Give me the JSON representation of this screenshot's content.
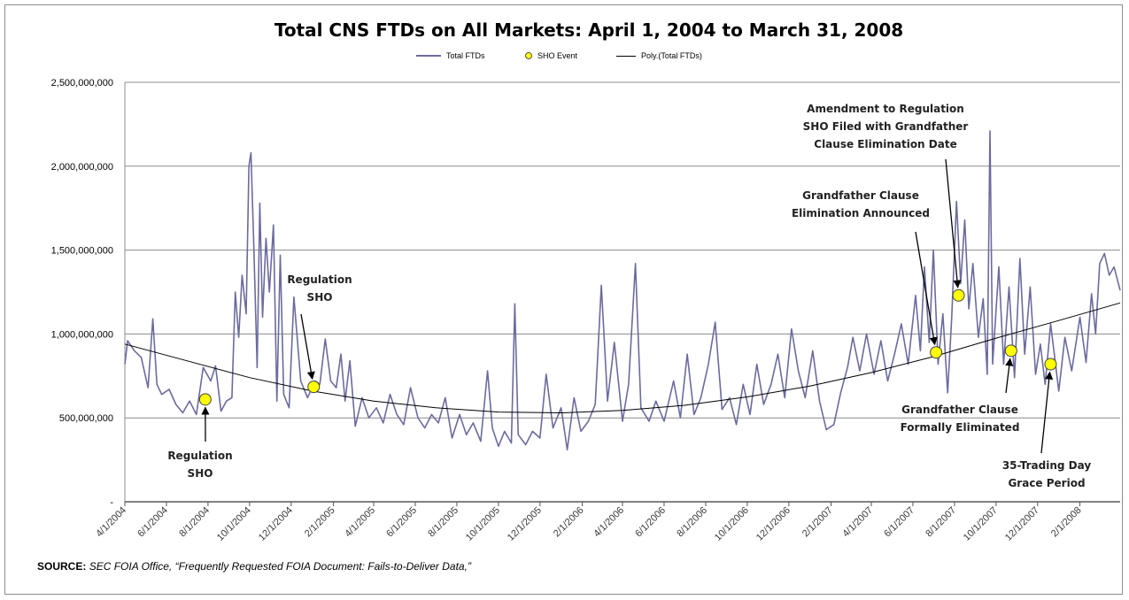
{
  "chart_data": {
    "type": "line",
    "title": "Total CNS FTDs on All Markets: April 1, 2004 to March 31, 2008",
    "legend": {
      "position": "top",
      "entries": [
        {
          "name": "Total FTDs",
          "kind": "line",
          "color": "#6b6b9e"
        },
        {
          "name": "SHO Event",
          "kind": "marker",
          "color": "#ffff00"
        },
        {
          "name": "Poly.(Total FTDs)",
          "kind": "line",
          "color": "#000000"
        }
      ]
    },
    "x_range": [
      "4/1/2004",
      "3/31/2008"
    ],
    "x_ticks": [
      "4/1/2004",
      "6/1/2004",
      "8/1/2004",
      "10/1/2004",
      "12/1/2004",
      "2/1/2005",
      "4/1/2005",
      "6/1/2005",
      "8/1/2005",
      "10/1/2005",
      "12/1/2005",
      "2/1/2006",
      "4/1/2006",
      "6/1/2006",
      "8/1/2006",
      "10/1/2006",
      "12/1/2006",
      "2/1/2007",
      "4/1/2007",
      "6/1/2007",
      "8/1/2007",
      "10/1/2007",
      "12/1/2007",
      "2/1/2008"
    ],
    "ylim": [
      0,
      2500000000
    ],
    "y_ticks": [
      0,
      500000000,
      1000000000,
      1500000000,
      2000000000,
      2500000000
    ],
    "y_tick_labels": [
      "-",
      "500,000,000",
      "1,000,000,000",
      "1,500,000,000",
      "2,000,000,000",
      "2,500,000,000"
    ],
    "grid": "horizontal",
    "series": [
      {
        "name": "Total FTDs",
        "color": "#6b6b9e",
        "points": [
          [
            "2004-04-01",
            820000000
          ],
          [
            "2004-04-05",
            960000000
          ],
          [
            "2004-04-15",
            900000000
          ],
          [
            "2004-04-25",
            860000000
          ],
          [
            "2004-05-05",
            680000000
          ],
          [
            "2004-05-12",
            1090000000
          ],
          [
            "2004-05-18",
            700000000
          ],
          [
            "2004-05-25",
            640000000
          ],
          [
            "2004-06-05",
            670000000
          ],
          [
            "2004-06-15",
            580000000
          ],
          [
            "2004-06-25",
            530000000
          ],
          [
            "2004-07-05",
            600000000
          ],
          [
            "2004-07-15",
            520000000
          ],
          [
            "2004-07-25",
            800000000
          ],
          [
            "2004-08-05",
            720000000
          ],
          [
            "2004-08-12",
            810000000
          ],
          [
            "2004-08-20",
            540000000
          ],
          [
            "2004-08-28",
            600000000
          ],
          [
            "2004-09-05",
            620000000
          ],
          [
            "2004-09-10",
            1250000000
          ],
          [
            "2004-09-15",
            980000000
          ],
          [
            "2004-09-20",
            1350000000
          ],
          [
            "2004-09-26",
            1120000000
          ],
          [
            "2004-09-30",
            2000000000
          ],
          [
            "2004-10-03",
            2080000000
          ],
          [
            "2004-10-07",
            1550000000
          ],
          [
            "2004-10-12",
            800000000
          ],
          [
            "2004-10-16",
            1780000000
          ],
          [
            "2004-10-20",
            1100000000
          ],
          [
            "2004-10-25",
            1570000000
          ],
          [
            "2004-10-30",
            1250000000
          ],
          [
            "2004-11-05",
            1650000000
          ],
          [
            "2004-11-10",
            600000000
          ],
          [
            "2004-11-15",
            1470000000
          ],
          [
            "2004-11-20",
            640000000
          ],
          [
            "2004-11-28",
            560000000
          ],
          [
            "2004-12-05",
            1220000000
          ],
          [
            "2004-12-15",
            720000000
          ],
          [
            "2004-12-25",
            620000000
          ],
          [
            "2005-01-05",
            720000000
          ],
          [
            "2005-01-12",
            700000000
          ],
          [
            "2005-01-20",
            970000000
          ],
          [
            "2005-01-28",
            720000000
          ],
          [
            "2005-02-05",
            680000000
          ],
          [
            "2005-02-12",
            880000000
          ],
          [
            "2005-02-18",
            600000000
          ],
          [
            "2005-02-25",
            840000000
          ],
          [
            "2005-03-05",
            450000000
          ],
          [
            "2005-03-15",
            620000000
          ],
          [
            "2005-03-25",
            500000000
          ],
          [
            "2005-04-05",
            560000000
          ],
          [
            "2005-04-15",
            470000000
          ],
          [
            "2005-04-25",
            640000000
          ],
          [
            "2005-05-05",
            520000000
          ],
          [
            "2005-05-15",
            460000000
          ],
          [
            "2005-05-25",
            680000000
          ],
          [
            "2005-06-05",
            500000000
          ],
          [
            "2005-06-15",
            440000000
          ],
          [
            "2005-06-25",
            520000000
          ],
          [
            "2005-07-05",
            470000000
          ],
          [
            "2005-07-15",
            620000000
          ],
          [
            "2005-07-25",
            380000000
          ],
          [
            "2005-08-05",
            520000000
          ],
          [
            "2005-08-15",
            400000000
          ],
          [
            "2005-08-25",
            470000000
          ],
          [
            "2005-09-05",
            360000000
          ],
          [
            "2005-09-15",
            780000000
          ],
          [
            "2005-09-22",
            440000000
          ],
          [
            "2005-10-01",
            330000000
          ],
          [
            "2005-10-10",
            420000000
          ],
          [
            "2005-10-20",
            350000000
          ],
          [
            "2005-10-25",
            1180000000
          ],
          [
            "2005-10-30",
            400000000
          ],
          [
            "2005-11-10",
            340000000
          ],
          [
            "2005-11-20",
            420000000
          ],
          [
            "2005-12-01",
            380000000
          ],
          [
            "2005-12-10",
            760000000
          ],
          [
            "2005-12-20",
            440000000
          ],
          [
            "2006-01-01",
            560000000
          ],
          [
            "2006-01-10",
            310000000
          ],
          [
            "2006-01-20",
            620000000
          ],
          [
            "2006-01-30",
            420000000
          ],
          [
            "2006-02-10",
            480000000
          ],
          [
            "2006-02-20",
            580000000
          ],
          [
            "2006-03-01",
            1290000000
          ],
          [
            "2006-03-10",
            600000000
          ],
          [
            "2006-03-20",
            950000000
          ],
          [
            "2006-04-01",
            480000000
          ],
          [
            "2006-04-10",
            700000000
          ],
          [
            "2006-04-20",
            1420000000
          ],
          [
            "2006-04-28",
            560000000
          ],
          [
            "2006-05-10",
            480000000
          ],
          [
            "2006-05-20",
            600000000
          ],
          [
            "2006-06-01",
            480000000
          ],
          [
            "2006-06-15",
            720000000
          ],
          [
            "2006-06-25",
            500000000
          ],
          [
            "2006-07-05",
            880000000
          ],
          [
            "2006-07-15",
            520000000
          ],
          [
            "2006-07-25",
            620000000
          ],
          [
            "2006-08-05",
            820000000
          ],
          [
            "2006-08-15",
            1070000000
          ],
          [
            "2006-08-25",
            550000000
          ],
          [
            "2006-09-05",
            620000000
          ],
          [
            "2006-09-15",
            460000000
          ],
          [
            "2006-09-25",
            700000000
          ],
          [
            "2006-10-05",
            520000000
          ],
          [
            "2006-10-15",
            820000000
          ],
          [
            "2006-10-25",
            580000000
          ],
          [
            "2006-11-05",
            700000000
          ],
          [
            "2006-11-15",
            880000000
          ],
          [
            "2006-11-25",
            620000000
          ],
          [
            "2006-12-05",
            1030000000
          ],
          [
            "2006-12-15",
            780000000
          ],
          [
            "2006-12-25",
            620000000
          ],
          [
            "2007-01-05",
            900000000
          ],
          [
            "2007-01-15",
            600000000
          ],
          [
            "2007-01-25",
            430000000
          ],
          [
            "2007-02-05",
            460000000
          ],
          [
            "2007-02-15",
            650000000
          ],
          [
            "2007-02-25",
            800000000
          ],
          [
            "2007-03-05",
            980000000
          ],
          [
            "2007-03-15",
            780000000
          ],
          [
            "2007-03-25",
            1000000000
          ],
          [
            "2007-04-05",
            760000000
          ],
          [
            "2007-04-15",
            960000000
          ],
          [
            "2007-04-25",
            720000000
          ],
          [
            "2007-05-05",
            880000000
          ],
          [
            "2007-05-15",
            1060000000
          ],
          [
            "2007-05-25",
            820000000
          ],
          [
            "2007-06-05",
            1230000000
          ],
          [
            "2007-06-12",
            900000000
          ],
          [
            "2007-06-18",
            1400000000
          ],
          [
            "2007-06-25",
            950000000
          ],
          [
            "2007-07-01",
            1500000000
          ],
          [
            "2007-07-08",
            820000000
          ],
          [
            "2007-07-15",
            1120000000
          ],
          [
            "2007-07-22",
            650000000
          ],
          [
            "2007-07-28",
            1100000000
          ],
          [
            "2007-08-04",
            1790000000
          ],
          [
            "2007-08-10",
            1300000000
          ],
          [
            "2007-08-16",
            1680000000
          ],
          [
            "2007-08-22",
            1150000000
          ],
          [
            "2007-08-28",
            1420000000
          ],
          [
            "2007-09-05",
            980000000
          ],
          [
            "2007-09-12",
            1210000000
          ],
          [
            "2007-09-18",
            760000000
          ],
          [
            "2007-09-22",
            2210000000
          ],
          [
            "2007-09-26",
            820000000
          ],
          [
            "2007-10-05",
            1400000000
          ],
          [
            "2007-10-12",
            820000000
          ],
          [
            "2007-10-20",
            1280000000
          ],
          [
            "2007-10-28",
            740000000
          ],
          [
            "2007-11-05",
            1450000000
          ],
          [
            "2007-11-12",
            880000000
          ],
          [
            "2007-11-20",
            1280000000
          ],
          [
            "2007-11-28",
            760000000
          ],
          [
            "2007-12-05",
            940000000
          ],
          [
            "2007-12-12",
            700000000
          ],
          [
            "2007-12-20",
            1060000000
          ],
          [
            "2008-01-01",
            660000000
          ],
          [
            "2008-01-10",
            980000000
          ],
          [
            "2008-01-20",
            780000000
          ],
          [
            "2008-02-01",
            1100000000
          ],
          [
            "2008-02-10",
            830000000
          ],
          [
            "2008-02-18",
            1240000000
          ],
          [
            "2008-02-24",
            1000000000
          ],
          [
            "2008-03-01",
            1420000000
          ],
          [
            "2008-03-08",
            1480000000
          ],
          [
            "2008-03-15",
            1350000000
          ],
          [
            "2008-03-22",
            1400000000
          ],
          [
            "2008-03-31",
            1260000000
          ]
        ]
      },
      {
        "name": "Poly.(Total FTDs)",
        "color": "#000000",
        "points": [
          [
            "2004-04-01",
            940000000
          ],
          [
            "2004-07-01",
            840000000
          ],
          [
            "2004-10-01",
            740000000
          ],
          [
            "2005-01-01",
            660000000
          ],
          [
            "2005-04-01",
            600000000
          ],
          [
            "2005-07-01",
            560000000
          ],
          [
            "2005-10-01",
            535000000
          ],
          [
            "2006-01-01",
            530000000
          ],
          [
            "2006-04-01",
            545000000
          ],
          [
            "2006-07-01",
            575000000
          ],
          [
            "2006-10-01",
            625000000
          ],
          [
            "2007-01-01",
            690000000
          ],
          [
            "2007-04-01",
            770000000
          ],
          [
            "2007-07-01",
            865000000
          ],
          [
            "2007-10-01",
            975000000
          ],
          [
            "2008-01-01",
            1080000000
          ],
          [
            "2008-03-31",
            1185000000
          ]
        ]
      },
      {
        "name": "SHO Event",
        "color": "#ffff00",
        "points": [
          [
            "2004-07-28",
            610000000
          ],
          [
            "2005-01-03",
            685000000
          ],
          [
            "2007-07-05",
            890000000
          ],
          [
            "2007-08-07",
            1230000000
          ],
          [
            "2007-10-23",
            900000000
          ],
          [
            "2007-12-20",
            820000000
          ]
        ]
      }
    ],
    "annotations": [
      {
        "lines": [
          "Regulation",
          "SHO"
        ],
        "arrow_to": [
          "2004-07-28",
          610000000
        ]
      },
      {
        "lines": [
          "Regulation",
          "SHO"
        ],
        "arrow_to": [
          "2005-01-03",
          685000000
        ]
      },
      {
        "lines": [
          "Grandfather Clause",
          "Elimination Announced"
        ],
        "arrow_to": [
          "2007-07-05",
          890000000
        ]
      },
      {
        "lines": [
          "Amendment to Regulation",
          "SHO Filed with Grandfather",
          "Clause Elimination Date"
        ],
        "arrow_to": [
          "2007-08-07",
          1230000000
        ]
      },
      {
        "lines": [
          "Grandfather Clause",
          "Formally Eliminated"
        ],
        "arrow_to": [
          "2007-10-23",
          900000000
        ]
      },
      {
        "lines": [
          "35-Trading Day",
          "Grace Period"
        ],
        "arrow_to": [
          "2007-12-20",
          820000000
        ]
      }
    ]
  },
  "source": {
    "prefix": "SOURCE:",
    "text": "SEC FOIA  Office, “Frequently Requested FOIA Document: Fails-to-Deliver Data,”"
  }
}
